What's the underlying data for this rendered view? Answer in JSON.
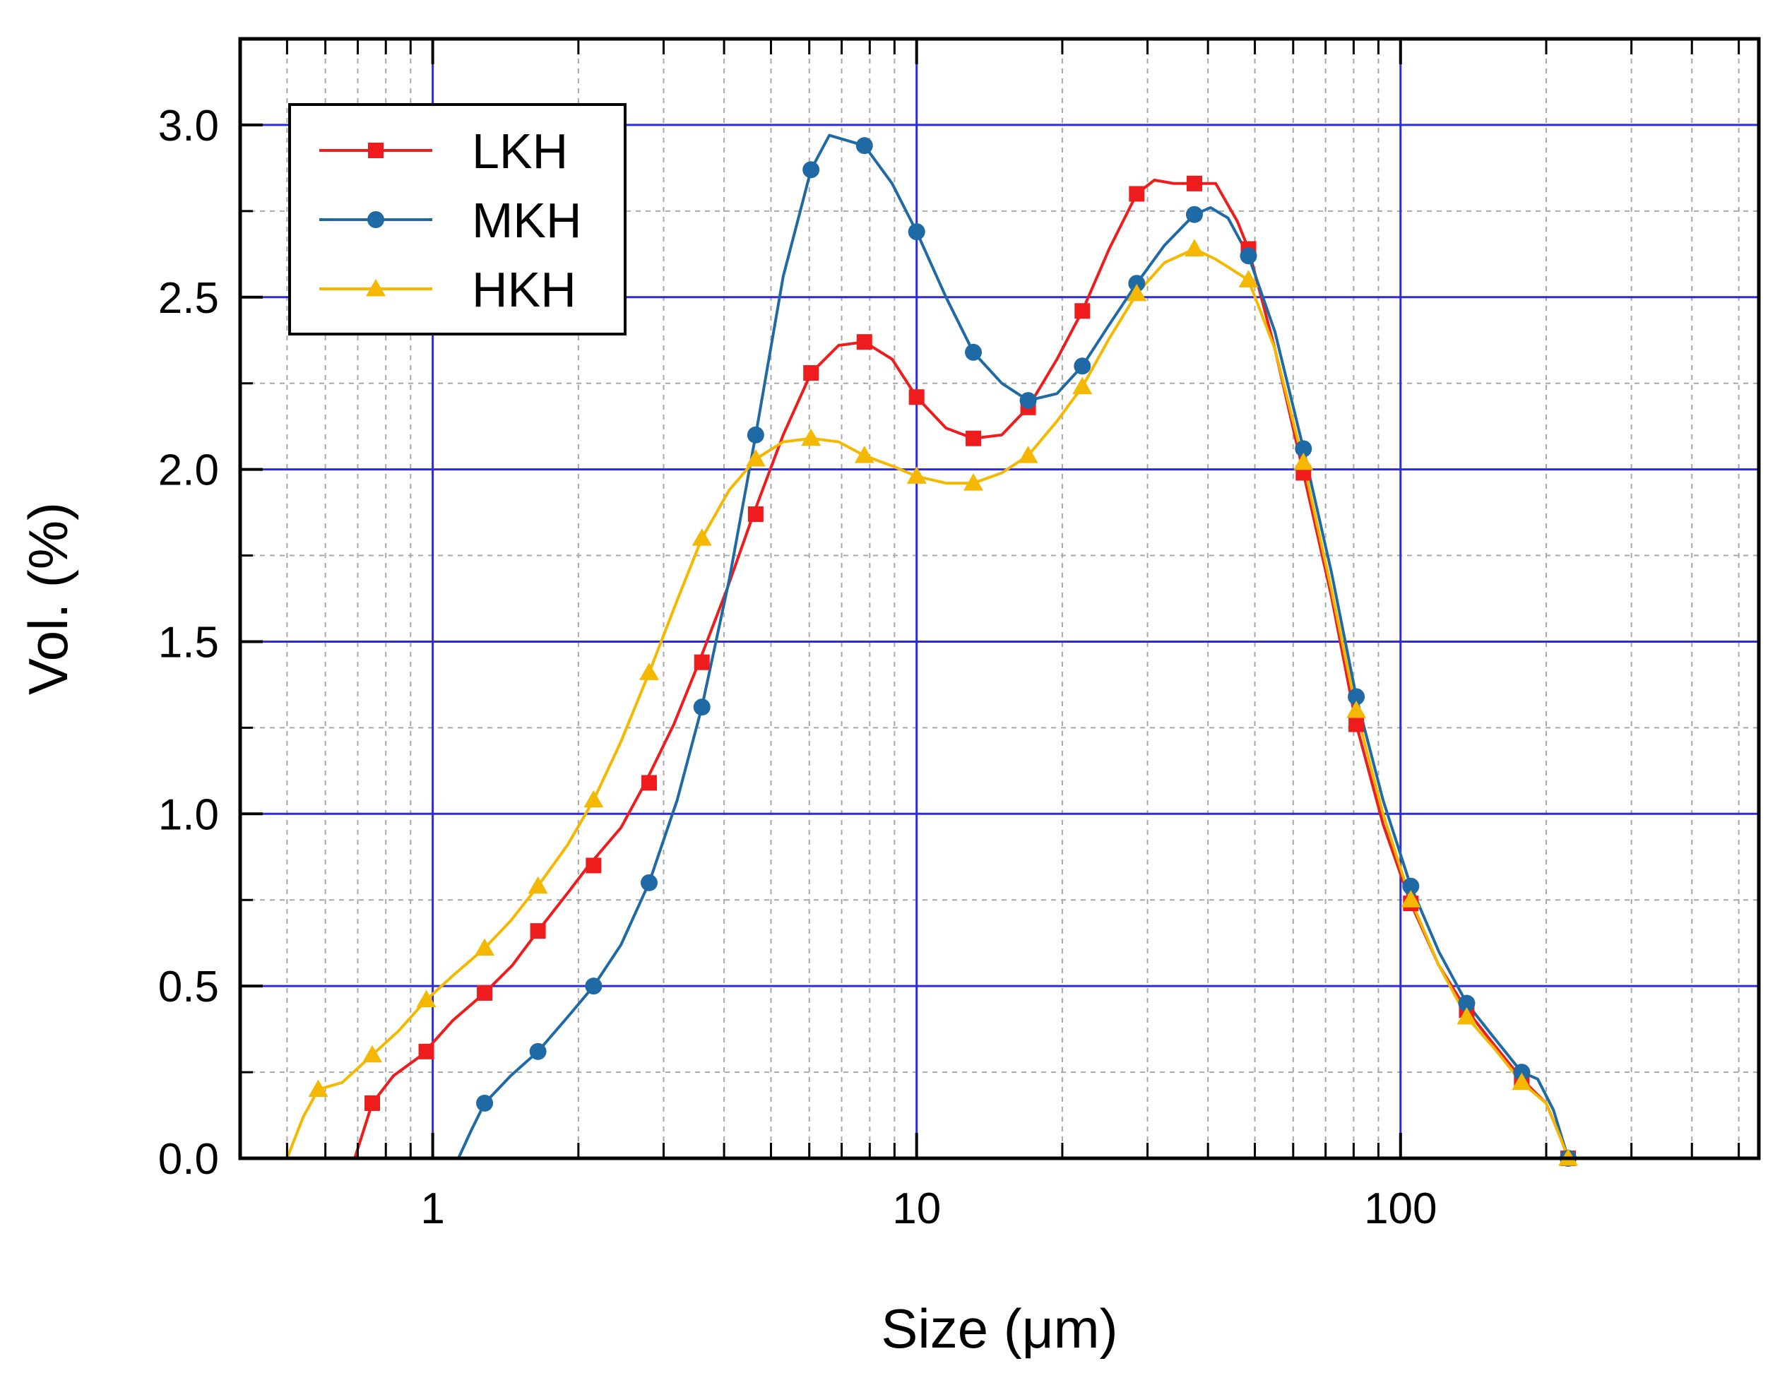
{
  "chart_data": {
    "type": "line",
    "title": "",
    "xlabel": "Size (μm)",
    "ylabel": "Vol. (%)",
    "xscale": "log",
    "xlim": [
      0.4,
      550
    ],
    "ylim": [
      0,
      3.25
    ],
    "xticks": [
      1,
      10,
      100
    ],
    "xtick_labels": [
      "1",
      "10",
      "100"
    ],
    "yticks": [
      0,
      0.5,
      1.0,
      1.5,
      2.0,
      2.5,
      3.0
    ],
    "ytick_labels": [
      "0.0",
      "0.5",
      "1.0",
      "1.5",
      "2.0",
      "2.5",
      "3.0"
    ],
    "grid": true,
    "legend_position": "top-left",
    "colors": {
      "grid_major": "#2b2bd9",
      "grid_minor": "#a8a8a8",
      "axis": "#000000"
    },
    "series": [
      {
        "name": "LKH",
        "color": "#ee1c1c",
        "marker": "square",
        "x": [
          0.69,
          0.75,
          0.83,
          0.95,
          1.1,
          1.28,
          1.46,
          1.65,
          1.9,
          2.1,
          2.45,
          2.75,
          3.15,
          3.55,
          4.05,
          4.6,
          5.3,
          6.05,
          6.9,
          7.8,
          8.9,
          10.0,
          11.5,
          13.1,
          15.0,
          17.0,
          19.5,
          22.0,
          25.0,
          28.5,
          31.0,
          34.0,
          37.5,
          41.5,
          46.0,
          48.5,
          55.0,
          63.0,
          72.0,
          81.0,
          92.0,
          105.0,
          120.0,
          137.0,
          156.0,
          178.0,
          200.0,
          214.0,
          222.0
        ],
        "y": [
          0.0,
          0.16,
          0.24,
          0.3,
          0.4,
          0.48,
          0.56,
          0.66,
          0.77,
          0.85,
          0.96,
          1.09,
          1.26,
          1.44,
          1.65,
          1.87,
          2.1,
          2.28,
          2.36,
          2.37,
          2.32,
          2.21,
          2.12,
          2.09,
          2.1,
          2.18,
          2.32,
          2.46,
          2.64,
          2.8,
          2.84,
          2.83,
          2.83,
          2.83,
          2.72,
          2.64,
          2.35,
          1.99,
          1.63,
          1.26,
          0.97,
          0.74,
          0.56,
          0.43,
          0.33,
          0.23,
          0.16,
          0.06,
          0.0
        ],
        "marker_x": [
          0.75,
          0.97,
          1.28,
          1.65,
          2.15,
          2.8,
          3.6,
          4.65,
          6.05,
          7.8,
          10.0,
          13.1,
          17.0,
          22.0,
          28.5,
          37.5,
          48.5,
          63.0,
          81.0,
          105.0,
          137.0,
          178.0,
          222.0
        ],
        "marker_y": [
          0.16,
          0.31,
          0.48,
          0.66,
          0.85,
          1.09,
          1.44,
          1.87,
          2.28,
          2.37,
          2.21,
          2.09,
          2.18,
          2.46,
          2.8,
          2.83,
          2.64,
          1.99,
          1.26,
          0.74,
          0.43,
          0.23,
          0.0
        ]
      },
      {
        "name": "MKH",
        "color": "#1f6aa5",
        "marker": "circle",
        "x": [
          1.13,
          1.2,
          1.28,
          1.45,
          1.65,
          1.9,
          2.15,
          2.45,
          2.8,
          3.2,
          3.6,
          4.1,
          4.65,
          5.3,
          6.05,
          6.6,
          7.8,
          8.9,
          10.0,
          11.5,
          13.1,
          15.0,
          17.0,
          19.5,
          22.0,
          25.0,
          28.5,
          32.5,
          37.5,
          40.5,
          44.0,
          48.5,
          55.0,
          63.0,
          72.0,
          81.0,
          92.0,
          105.0,
          120.0,
          137.0,
          156.0,
          178.0,
          192.0,
          207.0,
          222.0
        ],
        "y": [
          0.0,
          0.08,
          0.16,
          0.24,
          0.31,
          0.41,
          0.5,
          0.62,
          0.8,
          1.04,
          1.31,
          1.68,
          2.1,
          2.56,
          2.87,
          2.97,
          2.94,
          2.83,
          2.69,
          2.5,
          2.34,
          2.25,
          2.2,
          2.22,
          2.3,
          2.42,
          2.54,
          2.65,
          2.74,
          2.76,
          2.73,
          2.62,
          2.4,
          2.06,
          1.7,
          1.34,
          1.04,
          0.79,
          0.6,
          0.45,
          0.35,
          0.25,
          0.23,
          0.14,
          0.0
        ],
        "marker_x": [
          1.28,
          1.65,
          2.15,
          2.8,
          3.6,
          4.65,
          6.05,
          7.8,
          10.0,
          13.1,
          17.0,
          22.0,
          28.5,
          37.5,
          48.5,
          63.0,
          81.0,
          105.0,
          137.0,
          178.0,
          222.0
        ],
        "marker_y": [
          0.16,
          0.31,
          0.5,
          0.8,
          1.31,
          2.1,
          2.87,
          2.94,
          2.69,
          2.34,
          2.2,
          2.3,
          2.54,
          2.74,
          2.62,
          2.06,
          1.34,
          0.79,
          0.45,
          0.25,
          0.0
        ]
      },
      {
        "name": "HKH",
        "color": "#f5b800",
        "marker": "triangle",
        "x": [
          0.5,
          0.54,
          0.58,
          0.65,
          0.75,
          0.85,
          0.97,
          1.1,
          1.28,
          1.45,
          1.65,
          1.9,
          2.15,
          2.45,
          2.8,
          3.2,
          3.6,
          4.1,
          4.65,
          5.3,
          6.05,
          6.9,
          7.8,
          8.9,
          10.0,
          11.5,
          13.1,
          15.0,
          17.0,
          19.5,
          22.0,
          25.0,
          28.5,
          32.5,
          37.5,
          41.5,
          48.5,
          55.0,
          63.0,
          72.0,
          81.0,
          92.0,
          105.0,
          120.0,
          137.0,
          156.0,
          178.0,
          200.0,
          214.0,
          222.0
        ],
        "y": [
          0.0,
          0.12,
          0.2,
          0.22,
          0.3,
          0.37,
          0.46,
          0.53,
          0.61,
          0.69,
          0.79,
          0.91,
          1.04,
          1.21,
          1.41,
          1.62,
          1.8,
          1.94,
          2.03,
          2.08,
          2.09,
          2.08,
          2.04,
          2.01,
          1.98,
          1.96,
          1.96,
          1.99,
          2.04,
          2.14,
          2.24,
          2.38,
          2.51,
          2.6,
          2.64,
          2.61,
          2.55,
          2.35,
          2.02,
          1.65,
          1.3,
          1.0,
          0.75,
          0.56,
          0.41,
          0.32,
          0.22,
          0.16,
          0.06,
          0.0
        ],
        "marker_x": [
          0.58,
          0.75,
          0.97,
          1.28,
          1.65,
          2.15,
          2.8,
          3.6,
          4.65,
          6.05,
          7.8,
          10.0,
          13.1,
          17.0,
          22.0,
          28.5,
          37.5,
          48.5,
          63.0,
          81.0,
          105.0,
          137.0,
          178.0,
          222.0
        ],
        "marker_y": [
          0.2,
          0.3,
          0.46,
          0.61,
          0.79,
          1.04,
          1.41,
          1.8,
          2.03,
          2.09,
          2.04,
          1.98,
          1.96,
          2.04,
          2.24,
          2.51,
          2.64,
          2.55,
          2.02,
          1.3,
          0.75,
          0.41,
          0.22,
          0.0
        ]
      }
    ]
  }
}
